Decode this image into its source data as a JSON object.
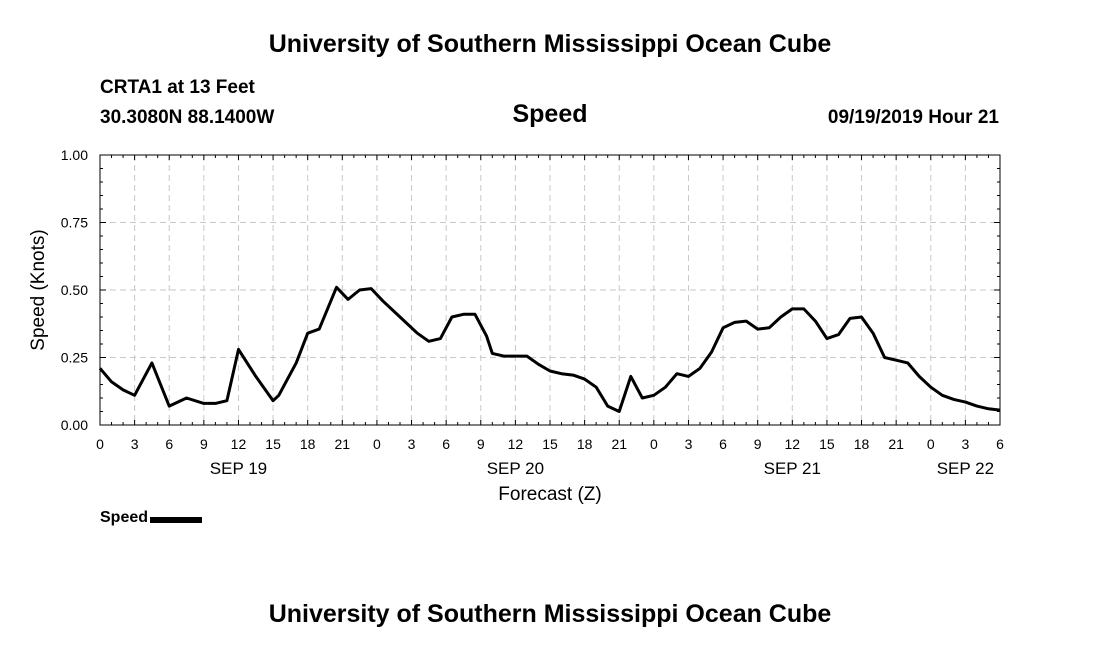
{
  "header": {
    "title": "University of Southern Mississippi Ocean Cube",
    "station": "CRTA1 at 13 Feet",
    "coords": "30.3080N 88.1400W",
    "chart_name": "Speed",
    "timestamp": "09/19/2019 Hour 21"
  },
  "footer": {
    "title": "University of Southern Mississippi Ocean Cube"
  },
  "legend": {
    "label": "Speed"
  },
  "chart_data": {
    "type": "line",
    "title": "Speed",
    "xlabel": "Forecast (Z)",
    "ylabel": "Speed (Knots)",
    "ylim": [
      0,
      1
    ],
    "yticks": [
      0,
      0.25,
      0.5,
      0.75,
      1
    ],
    "ytick_labels": [
      "0.00",
      "0.25",
      "0.50",
      "0.75",
      "1.00"
    ],
    "xlim": [
      0,
      78
    ],
    "xticks": [
      0,
      3,
      6,
      9,
      12,
      15,
      18,
      21,
      24,
      27,
      30,
      33,
      36,
      39,
      42,
      45,
      48,
      51,
      54,
      57,
      60,
      63,
      66,
      69,
      72,
      75,
      78
    ],
    "xtick_labels": [
      "0",
      "3",
      "6",
      "9",
      "12",
      "15",
      "18",
      "21",
      "0",
      "3",
      "6",
      "9",
      "12",
      "15",
      "18",
      "21",
      "0",
      "3",
      "6",
      "9",
      "12",
      "15",
      "18",
      "21",
      "0",
      "3",
      "6"
    ],
    "date_labels": [
      {
        "label": "SEP 19",
        "hour": 12
      },
      {
        "label": "SEP 20",
        "hour": 36
      },
      {
        "label": "SEP 21",
        "hour": 60
      },
      {
        "label": "SEP 22",
        "hour": 75
      }
    ],
    "grid": true,
    "series": [
      {
        "name": "Speed",
        "color": "#000000",
        "x": [
          0,
          1,
          2,
          3,
          4.5,
          6,
          7.5,
          9,
          10,
          11,
          12,
          13.5,
          15,
          15.5,
          17,
          18,
          19,
          20.5,
          21.5,
          22.5,
          23.5,
          24.5,
          26,
          27.5,
          28.5,
          29.5,
          30.5,
          31.5,
          32.5,
          33.5,
          34,
          35,
          36,
          37,
          38,
          39,
          40,
          41,
          42,
          43,
          44,
          45,
          46,
          47,
          48,
          49,
          50,
          51,
          52,
          53,
          54,
          55,
          56,
          57,
          58,
          59,
          60,
          61,
          62,
          63,
          64,
          65,
          66,
          67,
          68,
          69,
          70,
          71,
          72,
          73,
          74,
          75,
          76,
          77,
          78
        ],
        "values": [
          0.21,
          0.16,
          0.13,
          0.11,
          0.23,
          0.07,
          0.1,
          0.08,
          0.08,
          0.09,
          0.28,
          0.18,
          0.09,
          0.11,
          0.23,
          0.34,
          0.355,
          0.51,
          0.465,
          0.5,
          0.505,
          0.46,
          0.4,
          0.34,
          0.31,
          0.32,
          0.4,
          0.41,
          0.41,
          0.33,
          0.265,
          0.255,
          0.255,
          0.255,
          0.225,
          0.2,
          0.19,
          0.185,
          0.17,
          0.14,
          0.07,
          0.05,
          0.18,
          0.1,
          0.11,
          0.14,
          0.19,
          0.18,
          0.21,
          0.27,
          0.36,
          0.38,
          0.385,
          0.355,
          0.36,
          0.4,
          0.43,
          0.43,
          0.385,
          0.32,
          0.335,
          0.395,
          0.4,
          0.34,
          0.25,
          0.24,
          0.23,
          0.18,
          0.14,
          0.11,
          0.095,
          0.085,
          0.07,
          0.06,
          0.055
        ]
      }
    ]
  }
}
